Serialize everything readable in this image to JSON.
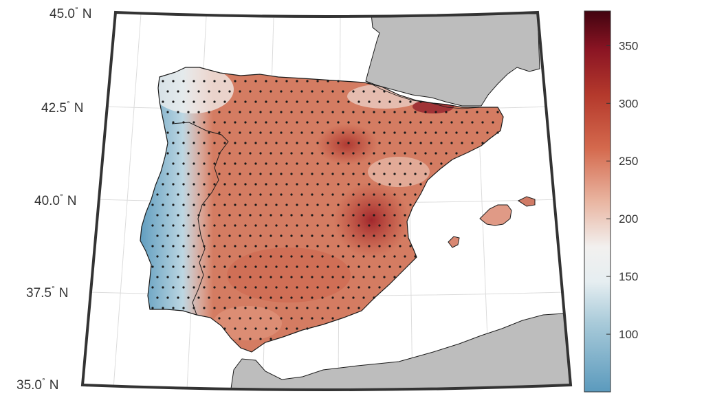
{
  "map": {
    "latitude_labels": [
      {
        "deg": "45.0",
        "sym": "°",
        "dir": "N"
      },
      {
        "deg": "42.5",
        "sym": "°",
        "dir": "N"
      },
      {
        "deg": "40.0",
        "sym": "°",
        "dir": "N"
      },
      {
        "deg": "37.5",
        "sym": "°",
        "dir": "N"
      },
      {
        "deg": "35.0",
        "sym": "°",
        "dir": "N"
      }
    ],
    "colors": {
      "land_outside": "#bdbdbd",
      "sea": "#ffffff",
      "frame": "#333333",
      "graticule": "#dcdcdc",
      "coast": "#1a1a1a",
      "station_dot": "#1a1a1a"
    }
  },
  "colorbar": {
    "ticks": [
      "100",
      "150",
      "200",
      "250",
      "300",
      "350"
    ],
    "range": [
      50,
      380
    ],
    "colormap": [
      "#5b9abd",
      "#cfe2ea",
      "#f2f0ef",
      "#e9b5a1",
      "#d4694d",
      "#b4392c",
      "#8a1423",
      "#420410"
    ]
  }
}
